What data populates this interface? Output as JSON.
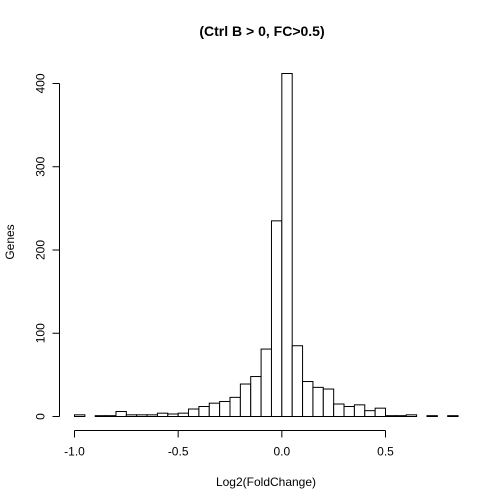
{
  "chart_data": {
    "type": "bar",
    "title": "(Ctrl B > 0, FC>0.5)",
    "xlabel": "Log2(FoldChange)",
    "ylabel": "Genes",
    "xlim": [
      -1.05,
      0.85
    ],
    "ylim": [
      0,
      412
    ],
    "bin_width": 0.05,
    "bins": [
      {
        "x0": -1.0,
        "x1": -0.95,
        "count": 2
      },
      {
        "x0": -0.95,
        "x1": -0.9,
        "count": 0
      },
      {
        "x0": -0.9,
        "x1": -0.85,
        "count": 1
      },
      {
        "x0": -0.85,
        "x1": -0.8,
        "count": 1
      },
      {
        "x0": -0.8,
        "x1": -0.75,
        "count": 6
      },
      {
        "x0": -0.75,
        "x1": -0.7,
        "count": 2
      },
      {
        "x0": -0.7,
        "x1": -0.65,
        "count": 2
      },
      {
        "x0": -0.65,
        "x1": -0.6,
        "count": 2
      },
      {
        "x0": -0.6,
        "x1": -0.55,
        "count": 4
      },
      {
        "x0": -0.55,
        "x1": -0.5,
        "count": 3
      },
      {
        "x0": -0.5,
        "x1": -0.45,
        "count": 4
      },
      {
        "x0": -0.45,
        "x1": -0.4,
        "count": 9
      },
      {
        "x0": -0.4,
        "x1": -0.35,
        "count": 12
      },
      {
        "x0": -0.35,
        "x1": -0.3,
        "count": 16
      },
      {
        "x0": -0.3,
        "x1": -0.25,
        "count": 18
      },
      {
        "x0": -0.25,
        "x1": -0.2,
        "count": 23
      },
      {
        "x0": -0.2,
        "x1": -0.15,
        "count": 39
      },
      {
        "x0": -0.15,
        "x1": -0.1,
        "count": 48
      },
      {
        "x0": -0.1,
        "x1": -0.05,
        "count": 81
      },
      {
        "x0": -0.05,
        "x1": 0.0,
        "count": 235
      },
      {
        "x0": 0.0,
        "x1": 0.05,
        "count": 412
      },
      {
        "x0": 0.05,
        "x1": 0.1,
        "count": 85
      },
      {
        "x0": 0.1,
        "x1": 0.15,
        "count": 42
      },
      {
        "x0": 0.15,
        "x1": 0.2,
        "count": 35
      },
      {
        "x0": 0.2,
        "x1": 0.25,
        "count": 33
      },
      {
        "x0": 0.25,
        "x1": 0.3,
        "count": 15
      },
      {
        "x0": 0.3,
        "x1": 0.35,
        "count": 12
      },
      {
        "x0": 0.35,
        "x1": 0.4,
        "count": 14
      },
      {
        "x0": 0.4,
        "x1": 0.45,
        "count": 7
      },
      {
        "x0": 0.45,
        "x1": 0.5,
        "count": 10
      },
      {
        "x0": 0.5,
        "x1": 0.55,
        "count": 1
      },
      {
        "x0": 0.55,
        "x1": 0.6,
        "count": 1
      },
      {
        "x0": 0.6,
        "x1": 0.65,
        "count": 2
      },
      {
        "x0": 0.65,
        "x1": 0.7,
        "count": 0
      },
      {
        "x0": 0.7,
        "x1": 0.75,
        "count": 1
      },
      {
        "x0": 0.75,
        "x1": 0.8,
        "count": 0
      },
      {
        "x0": 0.8,
        "x1": 0.85,
        "count": 1
      }
    ],
    "x_ticks": [
      -1.0,
      -0.5,
      0.0,
      0.5
    ],
    "x_tick_labels": [
      "-1.0",
      "-0.5",
      "0.0",
      "0.5"
    ],
    "y_ticks": [
      0,
      100,
      200,
      300,
      400
    ],
    "y_tick_labels": [
      "0",
      "100",
      "200",
      "300",
      "400"
    ],
    "grid": false,
    "bar_fill": "#ffffff",
    "bar_stroke": "#000000"
  }
}
